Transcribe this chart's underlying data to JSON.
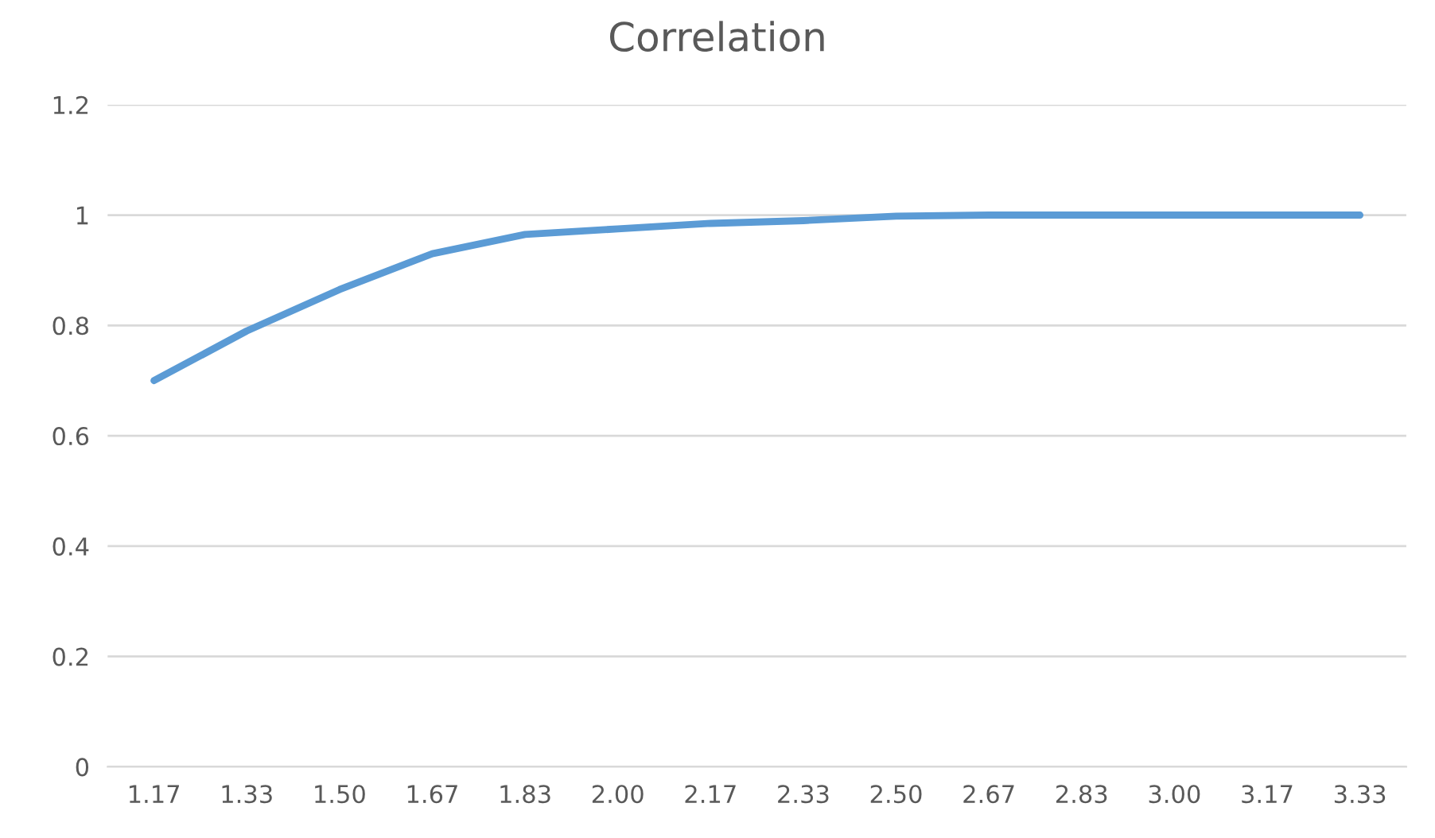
{
  "chart_data": {
    "type": "line",
    "title": "Correlation",
    "categories": [
      "1.17",
      "1.33",
      "1.50",
      "1.67",
      "1.83",
      "2.00",
      "2.17",
      "2.33",
      "2.50",
      "2.67",
      "2.83",
      "3.00",
      "3.17",
      "3.33"
    ],
    "series": [
      {
        "color": "#5b9bd5",
        "values": [
          0.7,
          0.79,
          0.865,
          0.93,
          0.965,
          0.975,
          0.985,
          0.99,
          0.998,
          1.0,
          1.0,
          1.0,
          1.0,
          1.0
        ]
      }
    ],
    "ylim": [
      0,
      1.2
    ],
    "yticks": [
      0,
      0.2,
      0.4,
      0.6,
      0.8,
      1,
      1.2
    ],
    "grid": "y",
    "marker": "none",
    "line_style": "solid"
  }
}
